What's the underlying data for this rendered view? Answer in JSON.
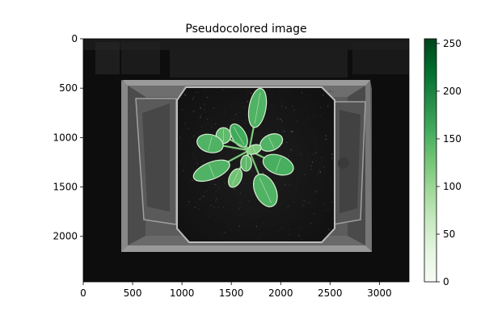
{
  "chart_data": {
    "type": "heatmap",
    "title": "Pseudocolored image",
    "colormap": "Greens",
    "xlim": [
      0,
      3300
    ],
    "ylim": [
      2460,
      0
    ],
    "xticks": [
      0,
      500,
      1000,
      1500,
      2000,
      2500,
      3000
    ],
    "yticks": [
      0,
      500,
      1000,
      1500,
      2000
    ],
    "colorbar": {
      "range": [
        0,
        255
      ],
      "ticks": [
        0,
        50,
        100,
        150,
        200,
        250
      ]
    },
    "plant": {
      "center": [
        1680,
        1130
      ],
      "leaves": [
        {
          "name": "top-leaf",
          "cx": 1765,
          "cy": 700,
          "rx": 85,
          "ry": 200,
          "angle": 10,
          "value": 150
        },
        {
          "name": "upper-left-leaf-1",
          "cx": 1575,
          "cy": 980,
          "rx": 70,
          "ry": 130,
          "angle": -30,
          "value": 160
        },
        {
          "name": "upper-left-leaf-2",
          "cx": 1420,
          "cy": 980,
          "rx": 75,
          "ry": 80,
          "angle": 0,
          "value": 140
        },
        {
          "name": "left-leaf",
          "cx": 1285,
          "cy": 1060,
          "rx": 135,
          "ry": 90,
          "angle": 15,
          "value": 150
        },
        {
          "name": "right-leaf",
          "cx": 1905,
          "cy": 1050,
          "rx": 120,
          "ry": 80,
          "angle": -25,
          "value": 150
        },
        {
          "name": "right-lower-leaf",
          "cx": 1975,
          "cy": 1275,
          "rx": 160,
          "ry": 95,
          "angle": 20,
          "value": 155
        },
        {
          "name": "lower-left-leaf",
          "cx": 1300,
          "cy": 1335,
          "rx": 195,
          "ry": 85,
          "angle": -22,
          "value": 150
        },
        {
          "name": "bottom-leaf",
          "cx": 1845,
          "cy": 1535,
          "rx": 105,
          "ry": 175,
          "angle": -25,
          "value": 150
        },
        {
          "name": "small-lower-leaf",
          "cx": 1540,
          "cy": 1410,
          "rx": 60,
          "ry": 100,
          "angle": 25,
          "value": 130
        },
        {
          "name": "center-leaf-1",
          "cx": 1730,
          "cy": 1120,
          "rx": 75,
          "ry": 45,
          "angle": -20,
          "value": 120
        },
        {
          "name": "center-leaf-2",
          "cx": 1650,
          "cy": 1260,
          "rx": 55,
          "ry": 80,
          "angle": 0,
          "value": 140
        }
      ]
    }
  }
}
